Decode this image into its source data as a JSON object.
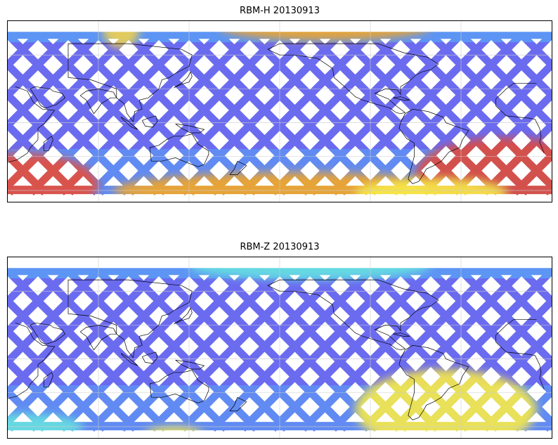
{
  "panels": [
    {
      "title": "RBM-H 20130913",
      "hot_zones": [
        {
          "cx": -170,
          "cy": -55,
          "rx": 25,
          "ry": 14,
          "color": "#e74c3c"
        },
        {
          "cx": 10,
          "cy": -60,
          "rx": 60,
          "ry": 8,
          "color": "#f5a623"
        },
        {
          "cx": 150,
          "cy": -45,
          "rx": 30,
          "ry": 16,
          "color": "#e04b3c"
        },
        {
          "cx": 30,
          "cy": 85,
          "rx": 35,
          "ry": 6,
          "color": "#f5a623"
        },
        {
          "cx": -105,
          "cy": 82,
          "rx": 6,
          "ry": 8,
          "color": "#f0d050"
        },
        {
          "cx": 100,
          "cy": -62,
          "rx": 25,
          "ry": 6,
          "color": "#f7ea48"
        }
      ]
    },
    {
      "title": "RBM-Z 20130913",
      "hot_zones": [
        {
          "cx": 110,
          "cy": -45,
          "rx": 30,
          "ry": 18,
          "color": "#f7ea48"
        },
        {
          "cx": -170,
          "cy": -60,
          "rx": 20,
          "ry": 6,
          "color": "#66e0e0"
        },
        {
          "cx": -70,
          "cy": -68,
          "rx": 10,
          "ry": 4,
          "color": "#f7ea48"
        },
        {
          "cx": 20,
          "cy": 82,
          "rx": 40,
          "ry": 6,
          "color": "#66e0e0"
        }
      ]
    }
  ],
  "map_extent": {
    "lon": [
      -180,
      180
    ],
    "lat": [
      -70,
      90
    ]
  },
  "colors": {
    "base_swath": "#6b6bf0",
    "mid_swath": "#5aa0f5",
    "coast": "#000000",
    "grid": "#cccccc"
  }
}
